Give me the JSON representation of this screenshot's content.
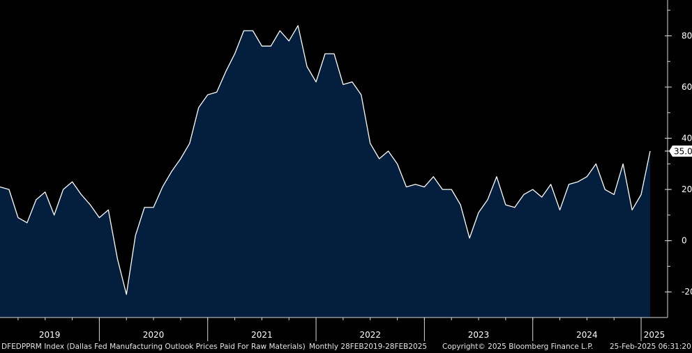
{
  "chart_data": {
    "type": "area",
    "title": "",
    "xlabel": "",
    "ylabel": "",
    "year_labels": [
      "2019",
      "2020",
      "2021",
      "2022",
      "2023",
      "2024",
      "2025"
    ],
    "x_start": "2019-02",
    "x_end": "2025-02",
    "ylim": [
      -30,
      94
    ],
    "yticks": [
      80,
      60,
      40,
      20,
      0,
      -20
    ],
    "ytick_labels": [
      "80",
      "60",
      "40",
      "20",
      "0",
      "-20"
    ],
    "last_value_label": "35.0",
    "colors": {
      "fill": "#041e3e",
      "line": "#ffffff",
      "background": "#000000",
      "axis": "#d9d9d9"
    },
    "series": [
      {
        "values": [
          21,
          20,
          9,
          7,
          16,
          19,
          10,
          20,
          23,
          18,
          14,
          9,
          12,
          -7,
          -21,
          2,
          13,
          13,
          21,
          27,
          32,
          38,
          52,
          57,
          58,
          66,
          73,
          82,
          82,
          76,
          76,
          82,
          78,
          84,
          68,
          62,
          73,
          73,
          61,
          62,
          57,
          38,
          32,
          35,
          30,
          21,
          22,
          21,
          25,
          20,
          20,
          14,
          1,
          11,
          16,
          25,
          14,
          13,
          18,
          20,
          17,
          22,
          12,
          22,
          23,
          25,
          30,
          20,
          18,
          30,
          12,
          18,
          35
        ]
      }
    ]
  },
  "footer": {
    "ticker": "DFEDPPRM Index (Dallas Fed Manufacturing Outlook Prices Paid For Raw Materials)",
    "frequency_range": "Monthly 28FEB2019-28FEB2025",
    "copyright": "Copyright© 2025 Bloomberg Finance L.P.",
    "timestamp": "25-Feb-2025 06:31:20"
  }
}
